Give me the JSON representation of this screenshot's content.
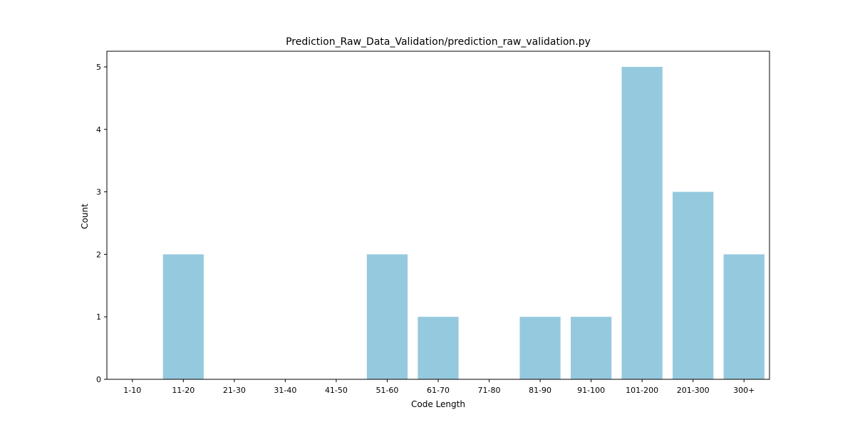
{
  "chart_data": {
    "type": "bar",
    "title": "Prediction_Raw_Data_Validation/prediction_raw_validation.py",
    "xlabel": "Code Length",
    "ylabel": "Count",
    "categories": [
      "1-10",
      "11-20",
      "21-30",
      "31-40",
      "41-50",
      "51-60",
      "61-70",
      "71-80",
      "81-90",
      "91-100",
      "101-200",
      "201-300",
      "300+"
    ],
    "values": [
      0,
      2,
      0,
      0,
      0,
      2,
      1,
      0,
      1,
      1,
      5,
      3,
      2
    ],
    "yticks": [
      0,
      1,
      2,
      3,
      4,
      5
    ],
    "ylim": [
      0,
      5.25
    ],
    "bar_color": "#95c9de",
    "grid": false,
    "legend": "none"
  }
}
